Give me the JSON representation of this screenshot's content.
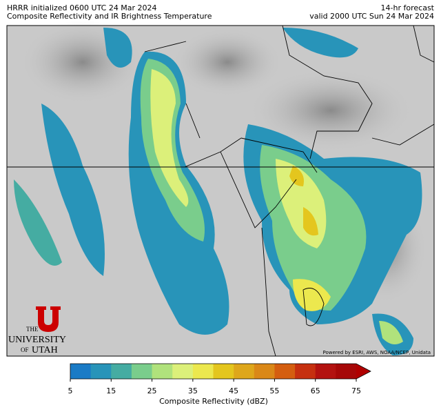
{
  "header": {
    "left": [
      "HRRR initialized 0600 UTC 24 Mar 2024",
      "Composite Reflectivity and IR Brightness Temperature"
    ],
    "right": [
      "14-hr forecast",
      "valid 2000 UTC Sun 24 Mar 2024"
    ]
  },
  "logo": {
    "lines": [
      "THE",
      "UNIVERSITY",
      "OF",
      "UTAH"
    ]
  },
  "attribution": "Powered by ESRI, AWS, NOAA/NCEP, Unidata",
  "colorbar": {
    "label": "Composite Reflectivity (dBZ)",
    "boundaries": [
      5,
      10,
      15,
      20,
      25,
      30,
      35,
      40,
      45,
      50,
      55,
      60,
      65,
      70,
      75
    ],
    "colors": [
      "#1a7bc6",
      "#2894b9",
      "#45aca2",
      "#7acd8c",
      "#b0e27c",
      "#dcf07a",
      "#ece84e",
      "#e4c61e",
      "#dea71b",
      "#da8818",
      "#d45e10",
      "#c63010",
      "#b31210",
      "#a60808"
    ],
    "extend_color": "#b00000",
    "ticks": [
      5,
      15,
      25,
      35,
      45,
      55,
      65,
      75
    ]
  }
}
